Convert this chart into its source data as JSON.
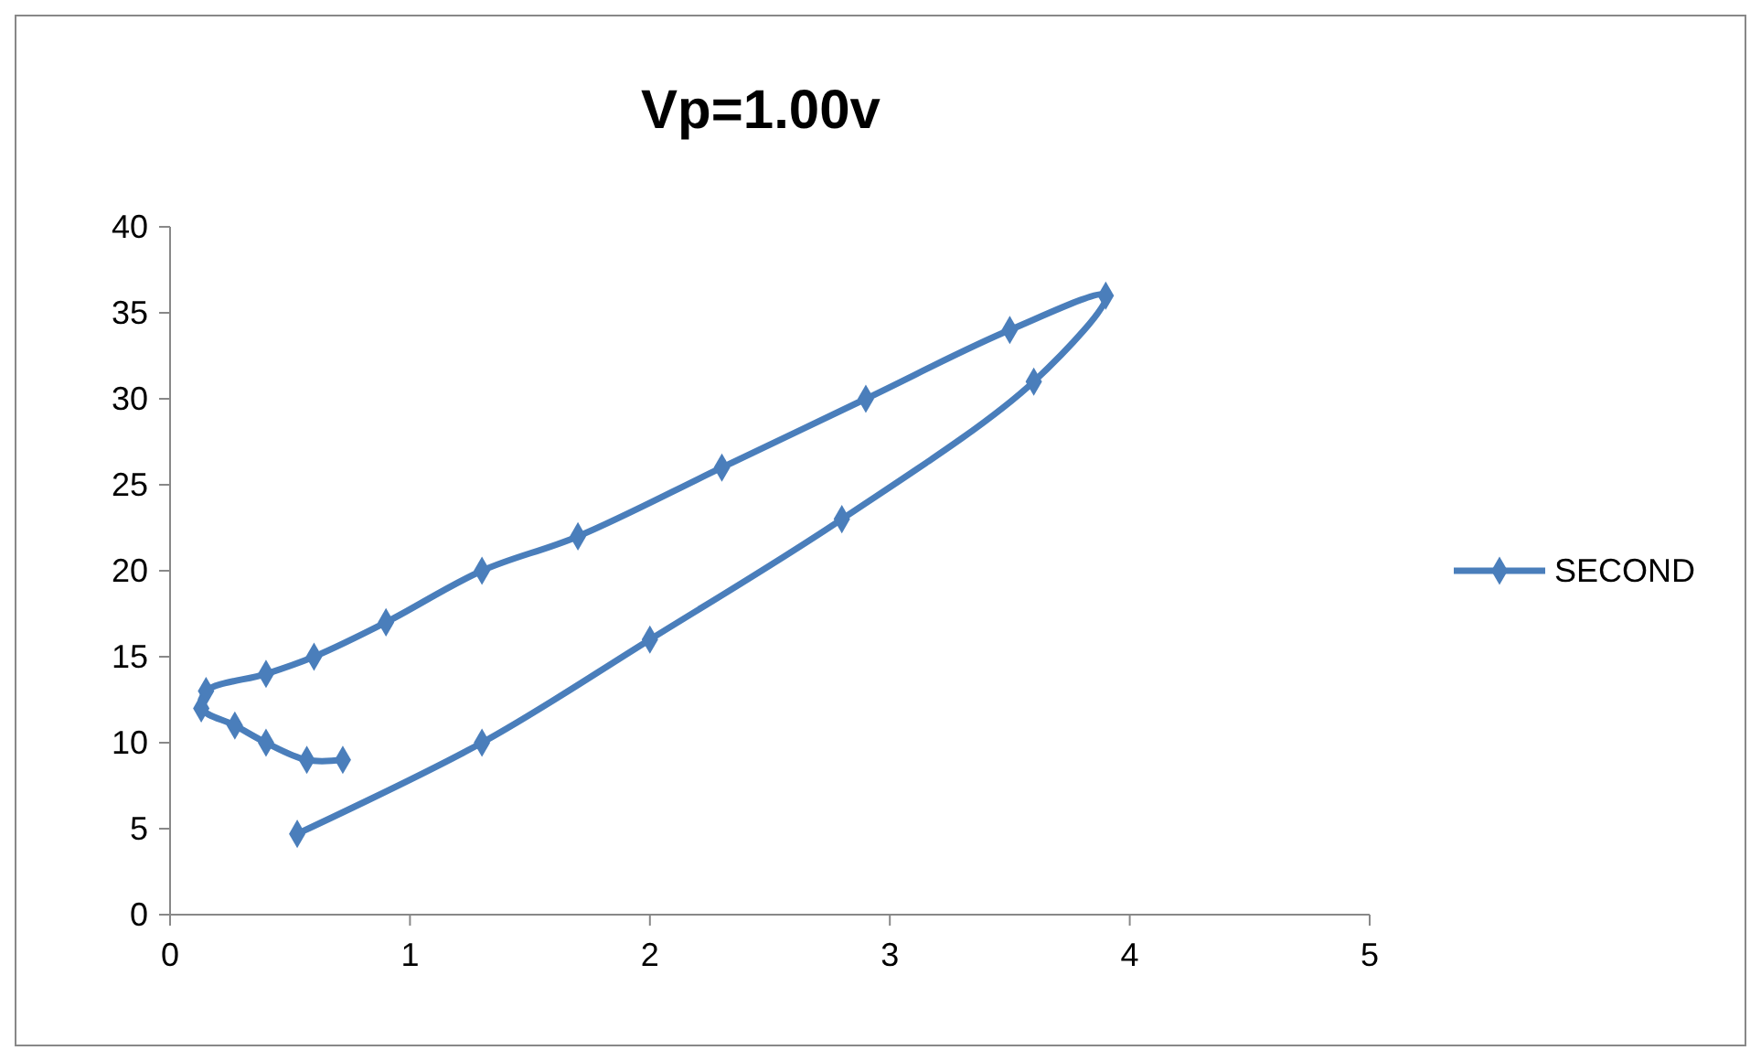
{
  "chart_data": {
    "type": "line",
    "title": "Vp=1.00v",
    "series": [
      {
        "name": "SECOND",
        "color": "#4a7ebb",
        "x": [
          0.53,
          1.3,
          2.0,
          2.8,
          3.6,
          3.9,
          3.5,
          2.9,
          2.3,
          1.7,
          1.3,
          0.9,
          0.6,
          0.4,
          0.15,
          0.13,
          0.27,
          0.4,
          0.57,
          0.72
        ],
        "values": [
          4.7,
          10,
          16,
          23,
          31,
          36,
          34,
          30,
          26,
          22,
          20,
          17,
          15,
          14,
          13,
          12,
          11,
          10,
          9,
          9
        ]
      }
    ],
    "xlim": [
      0,
      5
    ],
    "xticks": [
      0,
      1,
      2,
      3,
      4,
      5
    ],
    "ylim": [
      0,
      40
    ],
    "yticks": [
      0,
      5,
      10,
      15,
      20,
      25,
      30,
      35,
      40
    ],
    "grid": false,
    "legend": "right",
    "marker": "diamond",
    "line_style": "solid"
  }
}
